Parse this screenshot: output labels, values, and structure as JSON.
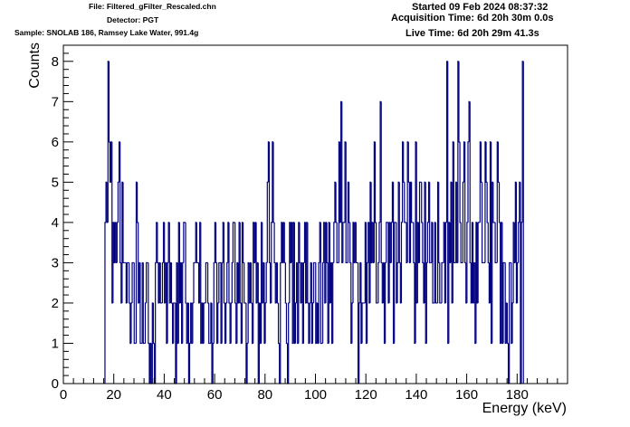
{
  "header": {
    "file": "File: Filtered_gFilter_Rescaled.chn",
    "detector": "Detector: PGT",
    "sample": "Sample: SNOLAB 186, Ramsey Lake Water, 991.4g",
    "started": "Started 09 Feb 2024 08:37:32",
    "acquisition": "Acquisition Time: 6d 20h 30m 0.0s",
    "live": "Live Time: 6d 20h 29m 41.3s"
  },
  "colors": {
    "histogram": "#000080",
    "axis": "#000000",
    "background": "#ffffff"
  },
  "chart_data": {
    "type": "bar",
    "style": "step histogram",
    "xlabel": "Energy (keV)",
    "ylabel": "Counts",
    "xlim": [
      0,
      200
    ],
    "ylim": [
      0,
      8.4
    ],
    "x_ticks": [
      0,
      20,
      40,
      60,
      80,
      100,
      120,
      140,
      160,
      180
    ],
    "y_ticks": [
      0,
      1,
      2,
      3,
      4,
      5,
      6,
      7,
      8
    ],
    "grid": false,
    "legend": "none",
    "x_start": 16.5,
    "bin_width": 0.4,
    "values": [
      4,
      5,
      4,
      8,
      6,
      5,
      6,
      2,
      4,
      3,
      4,
      3,
      4,
      5,
      6,
      3,
      2,
      5,
      3,
      3,
      3,
      2,
      3,
      3,
      2,
      1,
      2,
      3,
      3,
      1,
      1,
      5,
      4,
      2,
      3,
      1,
      1,
      3,
      1,
      1,
      2,
      3,
      3,
      1,
      0,
      1,
      0,
      2,
      1,
      0,
      3,
      4,
      3,
      2,
      3,
      2,
      2,
      3,
      4,
      2,
      3,
      1,
      3,
      4,
      2,
      3,
      2,
      1,
      2,
      2,
      0,
      3,
      1,
      4,
      2,
      3,
      1,
      3,
      4,
      4,
      2,
      1,
      2,
      0,
      1,
      2,
      1,
      2,
      3,
      3,
      4,
      3,
      3,
      2,
      4,
      1,
      2,
      1,
      2,
      2,
      3,
      3,
      2,
      1,
      1,
      2,
      0,
      1,
      3,
      4,
      3,
      1,
      2,
      3,
      3,
      1,
      3,
      4,
      2,
      1,
      2,
      3,
      4,
      2,
      1,
      2,
      3,
      4,
      4,
      2,
      1,
      3,
      2,
      4,
      2,
      1,
      4,
      3,
      2,
      2,
      0,
      1,
      3,
      2,
      3,
      2,
      1,
      4,
      3,
      4,
      2,
      3,
      0,
      2,
      1,
      4,
      2,
      3,
      1,
      2,
      3,
      5,
      6,
      3,
      2,
      4,
      6,
      4,
      3,
      2,
      3,
      2,
      1,
      0,
      3,
      4,
      3,
      4,
      3,
      2,
      1,
      0,
      2,
      4,
      3,
      4,
      1,
      4,
      1,
      2,
      3,
      1,
      4,
      3,
      2,
      3,
      1,
      3,
      4,
      2,
      4,
      2,
      1,
      2,
      3,
      1,
      2,
      3,
      3,
      1,
      2,
      1,
      3,
      4,
      1,
      1,
      3,
      4,
      2,
      4,
      3,
      1,
      4,
      2,
      3,
      1,
      3,
      4,
      5,
      4,
      3,
      3,
      6,
      4,
      7,
      3,
      4,
      4,
      6,
      3,
      3,
      5,
      4,
      3,
      1,
      2,
      4,
      3,
      4,
      3,
      3,
      0,
      2,
      3,
      1,
      2,
      2,
      2,
      4,
      1,
      3,
      4,
      2,
      5,
      3,
      4,
      3,
      6,
      4,
      2,
      2,
      3,
      4,
      7,
      3,
      2,
      3,
      1,
      3,
      4,
      4,
      2,
      4,
      3,
      4,
      5,
      1,
      4,
      4,
      2,
      3,
      5,
      3,
      2,
      4,
      6,
      5,
      4,
      4,
      3,
      6,
      5,
      3,
      5,
      4,
      4,
      3,
      1,
      6,
      2,
      4,
      3,
      5,
      5,
      4,
      3,
      2,
      5,
      1,
      3,
      4,
      5,
      3,
      3,
      4,
      2,
      2,
      4,
      2,
      2,
      5,
      3,
      2,
      2,
      3,
      3,
      4,
      2,
      4,
      8,
      1,
      4,
      3,
      5,
      2,
      6,
      3,
      3,
      5,
      3,
      8,
      6,
      4,
      3,
      3,
      5,
      6,
      3,
      2,
      4,
      6,
      7,
      3,
      2,
      4,
      2,
      3,
      1,
      4,
      2,
      4,
      4,
      6,
      5,
      3,
      3,
      3,
      6,
      5,
      4,
      3,
      2,
      6,
      1,
      5,
      4,
      4,
      3,
      3,
      6,
      5,
      4,
      1,
      4,
      1,
      3,
      3,
      1,
      2,
      1,
      0,
      3,
      3,
      1,
      2,
      4,
      3,
      5,
      2,
      3,
      4,
      5,
      0,
      4,
      8
    ]
  }
}
